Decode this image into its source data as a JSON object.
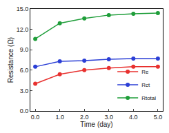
{
  "chart_data": {
    "type": "line",
    "x_label": "Time (day)",
    "y_label": "Resistance (Ω)",
    "x": [
      0,
      1,
      2,
      3,
      4,
      5
    ],
    "series": [
      {
        "name": "Re",
        "color": "#e8312f",
        "values": [
          4.0,
          5.4,
          6.0,
          6.3,
          6.5,
          6.5
        ]
      },
      {
        "name": "Rct",
        "color": "#2b3fd6",
        "values": [
          6.5,
          7.3,
          7.4,
          7.6,
          7.7,
          7.7
        ]
      },
      {
        "name": "Rtotal",
        "color": "#1f9e3a",
        "values": [
          10.6,
          12.9,
          13.6,
          14.1,
          14.3,
          14.4
        ]
      }
    ],
    "marker": "circle",
    "xlim": [
      -0.2,
      5.2
    ],
    "xticks": [
      {
        "value": 0,
        "label": "0.0"
      },
      {
        "value": 1,
        "label": "1.0"
      },
      {
        "value": 2,
        "label": "2.0"
      },
      {
        "value": 3,
        "label": "3.0"
      },
      {
        "value": 4,
        "label": "4.0"
      },
      {
        "value": 5,
        "label": "5.0"
      }
    ],
    "ylim": [
      0,
      15
    ],
    "yticks": [
      {
        "value": 0,
        "label": "0.0"
      },
      {
        "value": 3,
        "label": "3.0"
      },
      {
        "value": 6,
        "label": "6.0"
      },
      {
        "value": 9,
        "label": "9.0"
      },
      {
        "value": 12,
        "label": "12.0"
      },
      {
        "value": 15,
        "label": "15.0"
      }
    ],
    "legend": "lower right",
    "grid": false
  }
}
